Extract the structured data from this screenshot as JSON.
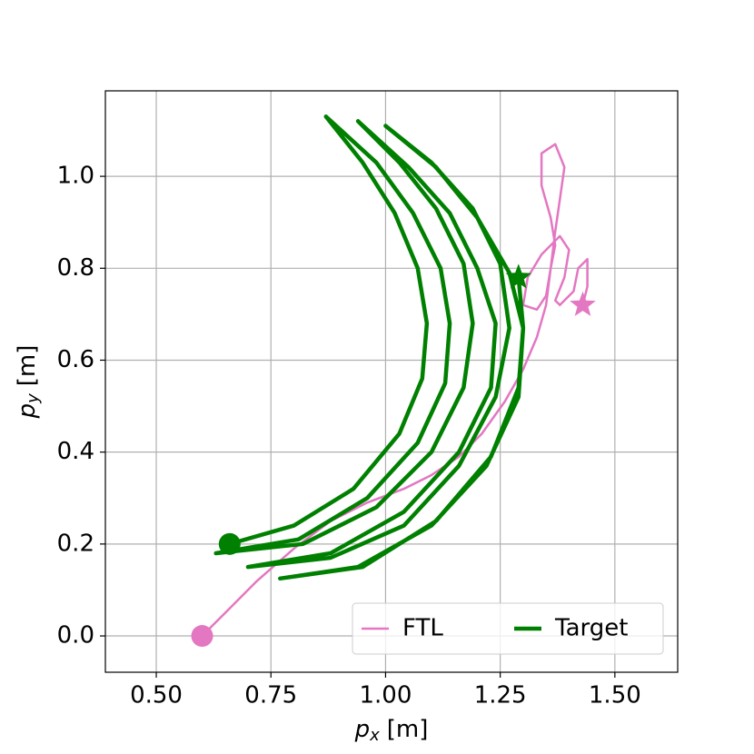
{
  "chart_data": {
    "type": "line",
    "xlabel": {
      "var": "p",
      "sub": "x",
      "unit": "[m]"
    },
    "ylabel": {
      "var": "p",
      "sub": "y",
      "unit": "[m]"
    },
    "xlim": [
      0.389,
      1.637
    ],
    "ylim": [
      -0.079,
      1.186
    ],
    "xticks": [
      {
        "value": 0.5,
        "label": "0.50"
      },
      {
        "value": 0.75,
        "label": "0.75"
      },
      {
        "value": 1.0,
        "label": "1.00"
      },
      {
        "value": 1.25,
        "label": "1.25"
      },
      {
        "value": 1.5,
        "label": "1.50"
      }
    ],
    "yticks": [
      {
        "value": 0.0,
        "label": "0.0"
      },
      0.2,
      0.4,
      0.6,
      0.8,
      {
        "value": 1.0,
        "label": "1.0"
      }
    ],
    "grid": true,
    "legend": "lower right",
    "series": [
      {
        "name": "FTL",
        "color": "#e377c2",
        "x": [
          0.6,
          0.66,
          0.72,
          0.8,
          0.88,
          0.96,
          1.04,
          1.1,
          1.16,
          1.21,
          1.26,
          1.3,
          1.33,
          1.35,
          1.36,
          1.37,
          1.38,
          1.39,
          1.37,
          1.34,
          1.34,
          1.36,
          1.37,
          1.36,
          1.35,
          1.33,
          1.3,
          1.31,
          1.34,
          1.38,
          1.4,
          1.39,
          1.37,
          1.38,
          1.41,
          1.42,
          1.44,
          1.44,
          1.43
        ],
        "values": [
          0.0,
          0.06,
          0.12,
          0.19,
          0.25,
          0.29,
          0.32,
          0.35,
          0.39,
          0.44,
          0.51,
          0.58,
          0.65,
          0.72,
          0.8,
          0.88,
          0.95,
          1.02,
          1.07,
          1.05,
          0.98,
          0.91,
          0.85,
          0.8,
          0.74,
          0.71,
          0.72,
          0.78,
          0.83,
          0.87,
          0.84,
          0.78,
          0.73,
          0.72,
          0.75,
          0.8,
          0.82,
          0.76,
          0.72
        ]
      },
      {
        "name": "Target",
        "color": "#008000",
        "x": [
          0.66,
          0.8,
          0.93,
          1.03,
          1.08,
          1.09,
          1.07,
          1.02,
          0.95,
          0.87,
          0.98,
          1.06,
          1.12,
          1.14,
          1.13,
          1.07,
          0.96,
          0.81,
          0.63,
          0.82,
          0.98,
          1.1,
          1.17,
          1.19,
          1.17,
          1.11,
          1.03,
          0.94,
          1.05,
          1.14,
          1.2,
          1.24,
          1.23,
          1.16,
          1.04,
          0.88,
          0.7,
          0.88,
          1.04,
          1.16,
          1.24,
          1.27,
          1.25,
          1.19,
          1.1,
          1.0,
          1.11,
          1.2,
          1.27,
          1.3,
          1.29,
          1.22,
          1.1,
          0.94,
          0.77,
          0.95,
          1.11,
          1.23,
          1.29,
          1.3,
          1.29
        ],
        "values": [
          0.2,
          0.24,
          0.32,
          0.44,
          0.56,
          0.68,
          0.8,
          0.92,
          1.03,
          1.13,
          1.03,
          0.92,
          0.8,
          0.68,
          0.55,
          0.42,
          0.3,
          0.21,
          0.18,
          0.2,
          0.28,
          0.4,
          0.54,
          0.68,
          0.81,
          0.93,
          1.03,
          1.12,
          1.02,
          0.92,
          0.8,
          0.68,
          0.54,
          0.4,
          0.27,
          0.18,
          0.15,
          0.17,
          0.24,
          0.37,
          0.52,
          0.67,
          0.81,
          0.93,
          1.03,
          1.11,
          1.02,
          0.91,
          0.79,
          0.67,
          0.52,
          0.37,
          0.24,
          0.15,
          0.125,
          0.15,
          0.25,
          0.39,
          0.54,
          0.67,
          0.78
        ]
      }
    ]
  }
}
